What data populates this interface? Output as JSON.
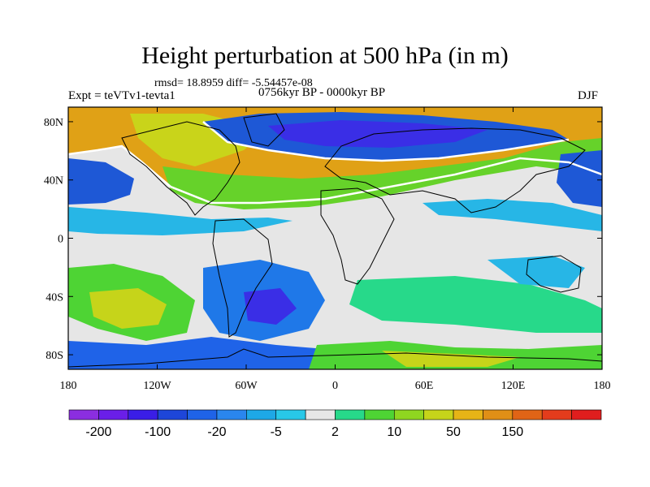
{
  "title": "Height perturbation at 500 hPa (in m)",
  "stats": "rmsd= 18.8959 diff= -5.54457e-08",
  "experiment": "Expt = teVTv1-tevta1",
  "period": "0756kyr BP - 0000kyr BP",
  "season": "DJF",
  "map": {
    "lat_ticks": [
      "80N",
      "40N",
      "0",
      "40S",
      "80S"
    ],
    "lat_values": [
      80,
      40,
      0,
      -40,
      -80
    ],
    "lon_ticks": [
      "180",
      "120W",
      "60W",
      "0",
      "60E",
      "120E",
      "180"
    ],
    "lon_values": [
      -180,
      -120,
      -60,
      0,
      60,
      120,
      180
    ],
    "lon_range": [
      -180,
      180
    ],
    "lat_range": [
      -90,
      90
    ]
  },
  "colorbar": {
    "labels": [
      "-200",
      "-100",
      "-20",
      "-5",
      "2",
      "10",
      "50",
      "150"
    ],
    "colors": [
      "#8b2ee0",
      "#6a1fe8",
      "#3a1ee6",
      "#1e46d9",
      "#1f63e8",
      "#2a86ee",
      "#1ea8e6",
      "#28c8e8",
      "#e6e6e6",
      "#27d98a",
      "#4ed434",
      "#8fd620",
      "#c6d41a",
      "#e6b416",
      "#e08f16",
      "#e06416",
      "#e33c1c",
      "#e01e1e"
    ]
  }
}
